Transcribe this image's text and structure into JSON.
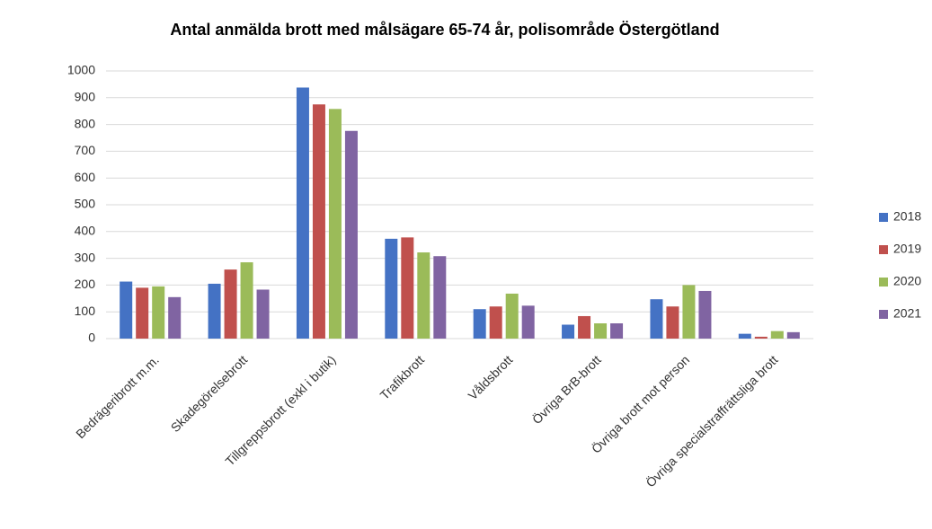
{
  "chart_data": {
    "type": "bar",
    "title": "Antal anmälda brott med målsägare 65-74 år, polisområde Östergötland",
    "categories": [
      "Bedrägeribrott m.m.",
      "Skadegörelsebrott",
      "Tillgreppsbrott (exkl i butik)",
      "Trafikbrott",
      "Våldsbrott",
      "Övriga BrB-brott",
      "Övriga brott mot person",
      "Övriga specialstraffrättsliga brott"
    ],
    "series": [
      {
        "name": "2018",
        "color": "#4472c4",
        "values": [
          213,
          205,
          938,
          373,
          110,
          52,
          147,
          18
        ]
      },
      {
        "name": "2019",
        "color": "#c0504d",
        "values": [
          190,
          258,
          875,
          378,
          120,
          84,
          120,
          7
        ]
      },
      {
        "name": "2020",
        "color": "#9bbb59",
        "values": [
          195,
          285,
          858,
          322,
          168,
          57,
          200,
          28
        ]
      },
      {
        "name": "2021",
        "color": "#8064a2",
        "values": [
          155,
          183,
          776,
          308,
          123,
          57,
          178,
          24
        ]
      }
    ],
    "ylim": [
      0,
      1000
    ],
    "yticks": [
      0,
      100,
      200,
      300,
      400,
      500,
      600,
      700,
      800,
      900,
      1000
    ],
    "grid": true,
    "legend": "right"
  }
}
